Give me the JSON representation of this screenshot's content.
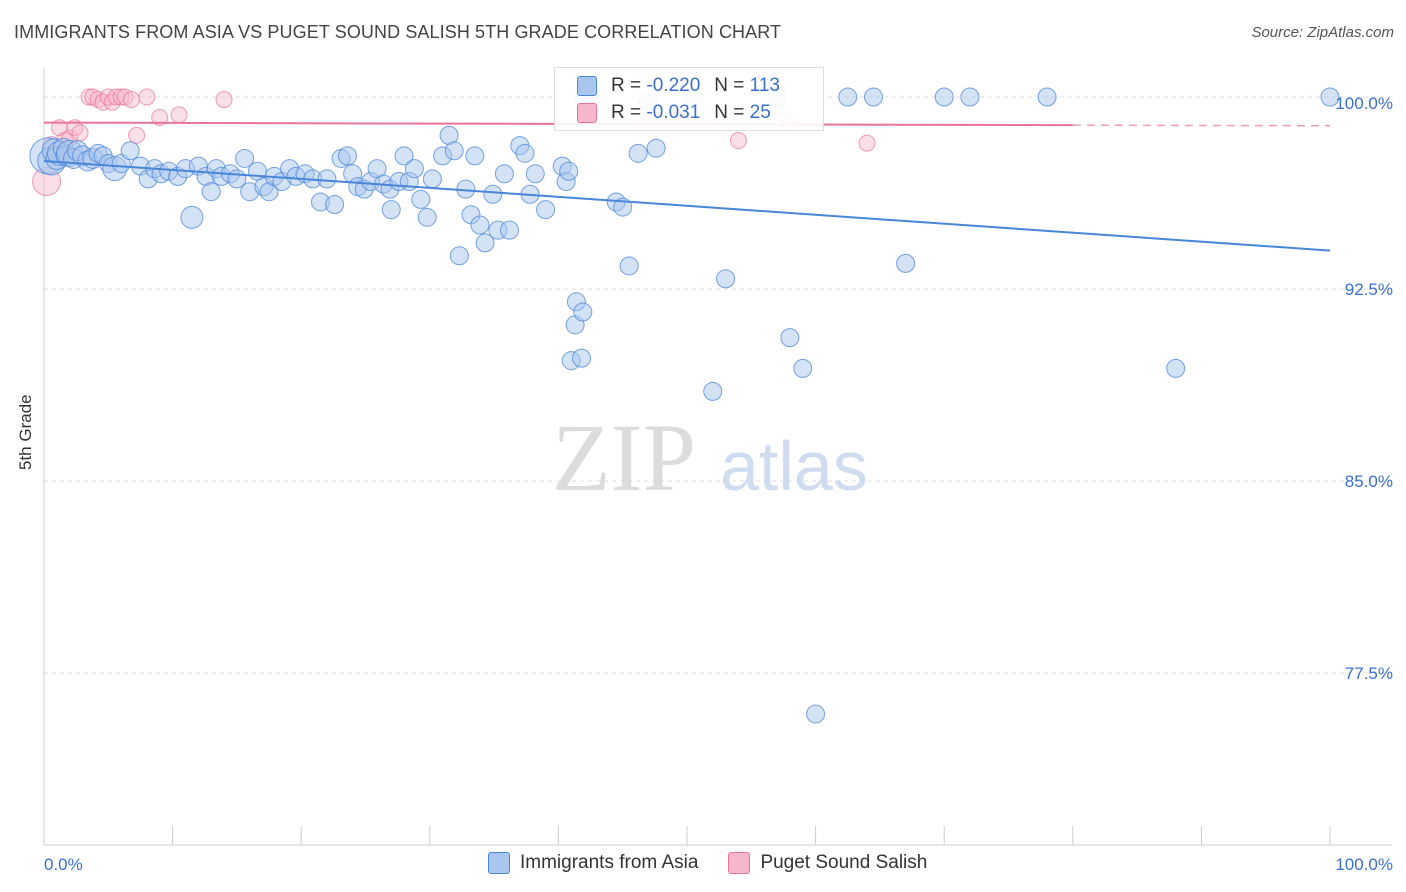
{
  "header": {
    "title": "IMMIGRANTS FROM ASIA VS PUGET SOUND SALISH 5TH GRADE CORRELATION CHART",
    "source": "Source: ZipAtlas.com"
  },
  "colors": {
    "blue": "#4a86d8",
    "blue_fill": "#a9c6ee",
    "pink": "#e8749a",
    "pink_fill": "#f7b7ca",
    "axis_label": "#3a6fd0",
    "grid": "#dddddd"
  },
  "stats": {
    "blue": {
      "r_label": "R =",
      "r_value": "-0.220",
      "n_label": "N =",
      "n_value": "113"
    },
    "pink": {
      "r_label": "R =",
      "r_value": "-0.031",
      "n_label": "N =",
      "n_value": "25"
    }
  },
  "legend": {
    "blue_label": "Immigrants from Asia",
    "pink_label": "Puget Sound Salish"
  },
  "watermark": {
    "zip": "ZIP",
    "atlas": "atlas"
  },
  "chart_data": {
    "type": "scatter",
    "title": "IMMIGRANTS FROM ASIA VS PUGET SOUND SALISH 5TH GRADE CORRELATION CHART",
    "xlabel": "",
    "ylabel": "5th Grade",
    "xlim": [
      0,
      100
    ],
    "ylim": [
      71,
      100.75
    ],
    "x_tick_labels": [
      "0.0%",
      "100.0%"
    ],
    "y_ticks": [
      {
        "value": 100.0,
        "label": "100.0%"
      },
      {
        "value": 92.5,
        "label": "92.5%"
      },
      {
        "value": 85.0,
        "label": "85.0%"
      },
      {
        "value": 77.5,
        "label": "77.5%"
      }
    ],
    "series": [
      {
        "name": "Immigrants from Asia",
        "color": "#4a86d8",
        "trend": {
          "x": [
            0,
            100
          ],
          "y": [
            97.5,
            94.0
          ]
        },
        "points": [
          [
            0.3,
            97.7,
            18
          ],
          [
            0.6,
            97.5,
            14
          ],
          [
            0.8,
            97.9,
            12
          ],
          [
            1.0,
            97.6,
            11
          ],
          [
            1.2,
            97.8,
            12
          ],
          [
            1.5,
            98.0,
            10
          ],
          [
            1.7,
            97.7,
            10
          ],
          [
            2.0,
            97.8,
            13
          ],
          [
            2.3,
            97.6,
            10
          ],
          [
            2.6,
            97.9,
            10
          ],
          [
            3.0,
            97.7,
            10
          ],
          [
            3.4,
            97.5,
            10
          ],
          [
            3.8,
            97.6,
            10
          ],
          [
            4.2,
            97.8,
            9
          ],
          [
            4.6,
            97.7,
            9
          ],
          [
            5.0,
            97.4,
            9
          ],
          [
            5.5,
            97.2,
            12
          ],
          [
            6.0,
            97.4,
            9
          ],
          [
            6.7,
            97.9,
            9
          ],
          [
            7.5,
            97.3,
            9
          ],
          [
            8.1,
            96.8,
            9
          ],
          [
            8.6,
            97.2,
            9
          ],
          [
            9.1,
            97.0,
            9
          ],
          [
            9.7,
            97.1,
            9
          ],
          [
            10.4,
            96.9,
            9
          ],
          [
            11.0,
            97.2,
            9
          ],
          [
            11.5,
            95.3,
            11
          ],
          [
            12.0,
            97.3,
            9
          ],
          [
            12.6,
            96.9,
            9
          ],
          [
            13.0,
            96.3,
            9
          ],
          [
            13.4,
            97.2,
            9
          ],
          [
            13.8,
            96.9,
            9
          ],
          [
            14.5,
            97.0,
            9
          ],
          [
            15.0,
            96.8,
            9
          ],
          [
            15.6,
            97.6,
            9
          ],
          [
            16.0,
            96.3,
            9
          ],
          [
            16.6,
            97.1,
            9
          ],
          [
            17.1,
            96.5,
            9
          ],
          [
            17.5,
            96.3,
            9
          ],
          [
            17.9,
            96.9,
            9
          ],
          [
            18.5,
            96.7,
            9
          ],
          [
            19.1,
            97.2,
            9
          ],
          [
            19.6,
            96.9,
            9
          ],
          [
            20.3,
            97.0,
            9
          ],
          [
            20.9,
            96.8,
            9
          ],
          [
            21.5,
            95.9,
            9
          ],
          [
            22.0,
            96.8,
            9
          ],
          [
            22.6,
            95.8,
            9
          ],
          [
            23.1,
            97.6,
            9
          ],
          [
            23.6,
            97.7,
            9
          ],
          [
            24.0,
            97.0,
            9
          ],
          [
            24.4,
            96.5,
            9
          ],
          [
            24.9,
            96.4,
            9
          ],
          [
            25.4,
            96.7,
            9
          ],
          [
            25.9,
            97.2,
            9
          ],
          [
            26.4,
            96.6,
            9
          ],
          [
            26.9,
            96.4,
            9
          ],
          [
            27.0,
            95.6,
            9
          ],
          [
            27.6,
            96.7,
            9
          ],
          [
            28.0,
            97.7,
            9
          ],
          [
            28.4,
            96.7,
            9
          ],
          [
            28.8,
            97.2,
            9
          ],
          [
            29.3,
            96.0,
            9
          ],
          [
            29.8,
            95.3,
            9
          ],
          [
            30.2,
            96.8,
            9
          ],
          [
            31.0,
            97.7,
            9
          ],
          [
            31.5,
            98.5,
            9
          ],
          [
            31.9,
            97.9,
            9
          ],
          [
            32.3,
            93.8,
            9
          ],
          [
            32.8,
            96.4,
            9
          ],
          [
            33.2,
            95.4,
            9
          ],
          [
            33.5,
            97.7,
            9
          ],
          [
            33.9,
            95.0,
            9
          ],
          [
            34.3,
            94.3,
            9
          ],
          [
            34.9,
            96.2,
            9
          ],
          [
            35.3,
            94.8,
            9
          ],
          [
            35.8,
            97.0,
            9
          ],
          [
            36.2,
            94.8,
            9
          ],
          [
            37.0,
            98.1,
            9
          ],
          [
            37.4,
            97.8,
            9
          ],
          [
            37.8,
            96.2,
            9
          ],
          [
            38.2,
            97.0,
            9
          ],
          [
            39.0,
            95.6,
            9
          ],
          [
            40.3,
            97.3,
            9
          ],
          [
            40.6,
            96.7,
            9
          ],
          [
            40.8,
            97.1,
            9
          ],
          [
            41.0,
            89.7,
            9
          ],
          [
            41.8,
            89.8,
            9
          ],
          [
            41.4,
            92.0,
            9
          ],
          [
            41.3,
            91.1,
            9
          ],
          [
            41.9,
            91.6,
            9
          ],
          [
            42.0,
            99.9,
            9
          ],
          [
            44.5,
            95.9,
            9
          ],
          [
            45.0,
            95.7,
            9
          ],
          [
            45.5,
            93.4,
            9
          ],
          [
            46.2,
            97.8,
            9
          ],
          [
            47.0,
            99.8,
            9
          ],
          [
            47.6,
            98.0,
            9
          ],
          [
            50.6,
            100.0,
            9
          ],
          [
            52.0,
            88.5,
            9
          ],
          [
            53.0,
            92.9,
            9
          ],
          [
            57.0,
            100.0,
            9
          ],
          [
            58.0,
            90.6,
            9
          ],
          [
            59.0,
            89.4,
            9
          ],
          [
            60.0,
            75.9,
            9
          ],
          [
            62.5,
            100.0,
            9
          ],
          [
            64.5,
            100.0,
            9
          ],
          [
            67.0,
            93.5,
            9
          ],
          [
            70.0,
            100.0,
            9
          ],
          [
            72.0,
            100.0,
            9
          ],
          [
            78.0,
            100.0,
            9
          ],
          [
            88.0,
            89.4,
            9
          ],
          [
            100.0,
            100.0,
            9
          ]
        ]
      },
      {
        "name": "Puget Sound Salish",
        "color": "#e8749a",
        "trend": {
          "x": [
            0,
            80
          ],
          "y": [
            99.0,
            98.9
          ]
        },
        "points": [
          [
            0.2,
            96.7,
            14
          ],
          [
            0.6,
            98.1,
            9
          ],
          [
            1.2,
            98.8,
            8
          ],
          [
            1.6,
            98.3,
            8
          ],
          [
            2.0,
            98.4,
            8
          ],
          [
            2.4,
            98.8,
            8
          ],
          [
            2.8,
            98.6,
            8
          ],
          [
            3.5,
            100.0,
            8
          ],
          [
            3.8,
            100.0,
            8
          ],
          [
            4.2,
            99.9,
            8
          ],
          [
            4.6,
            99.8,
            8
          ],
          [
            5.0,
            100.0,
            8
          ],
          [
            5.3,
            99.8,
            8
          ],
          [
            5.6,
            100.0,
            8
          ],
          [
            6.0,
            100.0,
            8
          ],
          [
            6.3,
            100.0,
            8
          ],
          [
            6.8,
            99.9,
            8
          ],
          [
            7.2,
            98.5,
            8
          ],
          [
            8.0,
            100.0,
            8
          ],
          [
            9.0,
            99.2,
            8
          ],
          [
            10.5,
            99.3,
            8
          ],
          [
            14.0,
            99.9,
            8
          ],
          [
            54.0,
            98.3,
            8
          ],
          [
            58.0,
            99.0,
            8
          ],
          [
            64.0,
            98.2,
            8
          ]
        ]
      }
    ]
  }
}
